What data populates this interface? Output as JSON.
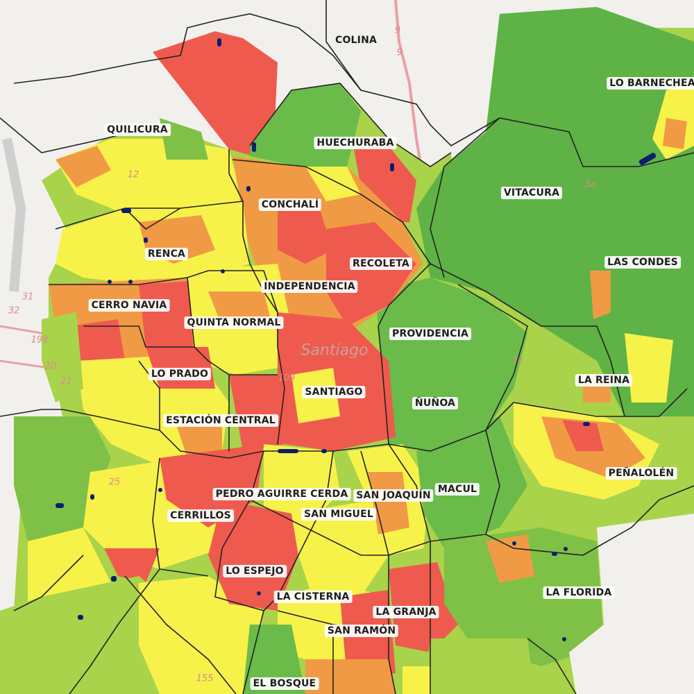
{
  "colors": {
    "green_dark": "#5fb245",
    "green_light": "#a9d34a",
    "yellow": "#f7f24a",
    "orange": "#f19a45",
    "red": "#ef5a4e",
    "marker": "#0a1e6e",
    "background": "#f2f0ec",
    "border": "#222222"
  },
  "communes": [
    {
      "id": "colina",
      "name": "COLINA",
      "boxed": false
    },
    {
      "id": "lo-barnechea",
      "name": "LO BARNECHEA",
      "boxed": true
    },
    {
      "id": "quilicura",
      "name": "QUILICURA",
      "boxed": true
    },
    {
      "id": "huechuraba",
      "name": "HUECHURABA",
      "boxed": true
    },
    {
      "id": "vitacura",
      "name": "VITACURA",
      "boxed": true
    },
    {
      "id": "conchali",
      "name": "CONCHALÍ",
      "boxed": true
    },
    {
      "id": "renca",
      "name": "RENCA",
      "boxed": true
    },
    {
      "id": "recoleta",
      "name": "RECOLETA",
      "boxed": true
    },
    {
      "id": "las-condes",
      "name": "LAS CONDES",
      "boxed": true
    },
    {
      "id": "independencia",
      "name": "INDEPENDENCIA",
      "boxed": true
    },
    {
      "id": "cerro-navia",
      "name": "CERRO NAVIA",
      "boxed": true
    },
    {
      "id": "quinta-normal",
      "name": "QUINTA NORMAL",
      "boxed": true
    },
    {
      "id": "providencia",
      "name": "PROVIDENCIA",
      "boxed": true
    },
    {
      "id": "lo-prado",
      "name": "LO PRADO",
      "boxed": true
    },
    {
      "id": "la-reina",
      "name": "LA REINA",
      "boxed": true
    },
    {
      "id": "santiago",
      "name": "SANTIAGO",
      "boxed": true
    },
    {
      "id": "nunoa",
      "name": "ÑUÑOA",
      "boxed": true
    },
    {
      "id": "estacion-central",
      "name": "ESTACIÓN CENTRAL",
      "boxed": true
    },
    {
      "id": "penalolen",
      "name": "PEÑALOLÉN",
      "boxed": true
    },
    {
      "id": "macul",
      "name": "MACUL",
      "boxed": true
    },
    {
      "id": "pedro-aguirre-cerda",
      "name": "PEDRO AGUIRRE CERDA",
      "boxed": true
    },
    {
      "id": "san-joaquin",
      "name": "SAN JOAQUÍN",
      "boxed": true
    },
    {
      "id": "cerrillos",
      "name": "CERRILLOS",
      "boxed": true
    },
    {
      "id": "san-miguel",
      "name": "SAN MIGUEL",
      "boxed": true
    },
    {
      "id": "lo-espejo",
      "name": "LO ESPEJO",
      "boxed": true
    },
    {
      "id": "la-florida",
      "name": "LA FLORIDA",
      "boxed": true
    },
    {
      "id": "la-cisterna",
      "name": "LA CISTERNA",
      "boxed": true
    },
    {
      "id": "la-granja",
      "name": "LA GRANJA",
      "boxed": true
    },
    {
      "id": "san-ramon",
      "name": "SAN RAMÓN",
      "boxed": true
    },
    {
      "id": "el-bosque",
      "name": "EL BOSQUE",
      "boxed": true
    }
  ],
  "basemap_labels": {
    "santiago_city": "Santiago",
    "route_numbers": [
      "9",
      "9",
      "12",
      "3a",
      "32",
      "31",
      "198",
      "20",
      "21",
      "25",
      "155",
      "109",
      "7o"
    ]
  }
}
